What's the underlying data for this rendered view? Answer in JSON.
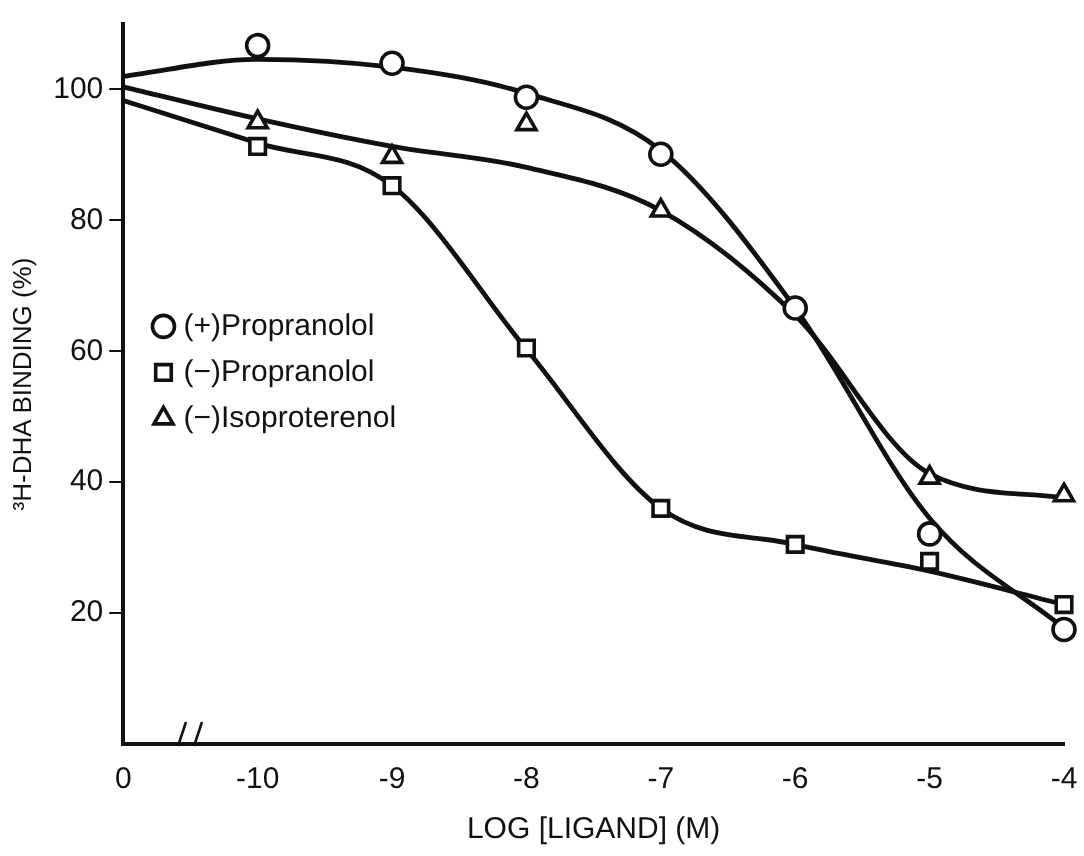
{
  "chart_data": {
    "type": "line",
    "xlabel": "LOG [LIGAND] (M)",
    "ylabel": "³H-DHA BINDING (%)",
    "categories": [
      "0",
      "-10",
      "-9",
      "-8",
      "-7",
      "-6",
      "-5",
      "-4"
    ],
    "ylim": [
      0,
      110
    ],
    "yticks": [
      20,
      40,
      60,
      80,
      100
    ],
    "grid": false,
    "legend": "left",
    "line_style": "solid",
    "series": [
      {
        "type": "line",
        "marker": "none",
        "color": "#111111",
        "values": [
          102,
          104.6,
          103.4,
          99.4,
          90.7,
          66.6,
          34.5,
          17.7
        ]
      },
      {
        "type": "line",
        "marker": "none",
        "color": "#111111",
        "values": [
          98.3,
          91.8,
          85.3,
          60.3,
          36,
          30.5,
          26.4,
          21.3
        ]
      },
      {
        "type": "line",
        "marker": "none",
        "color": "#111111",
        "values": [
          100.4,
          95.5,
          91.3,
          88.1,
          81.5,
          65.5,
          41.3,
          37.6
        ]
      },
      {
        "type": "scatter",
        "name": "(+)Propranolol",
        "marker": "circle",
        "color": "#111111",
        "values": [
          null,
          106.7,
          104,
          98.8,
          90.1,
          66.6,
          32.1,
          17.5
        ]
      },
      {
        "type": "scatter",
        "name": "(−)Propranolol",
        "marker": "square",
        "color": "#111111",
        "values": [
          null,
          91.3,
          85.3,
          60.5,
          36,
          30.5,
          27.9,
          21.3
        ]
      },
      {
        "type": "scatter",
        "name": "(−)Isoproterenol",
        "marker": "triangle",
        "color": "#111111",
        "values": [
          null,
          95,
          89.7,
          94.7,
          81.5,
          null,
          40.7,
          38
        ]
      }
    ]
  }
}
